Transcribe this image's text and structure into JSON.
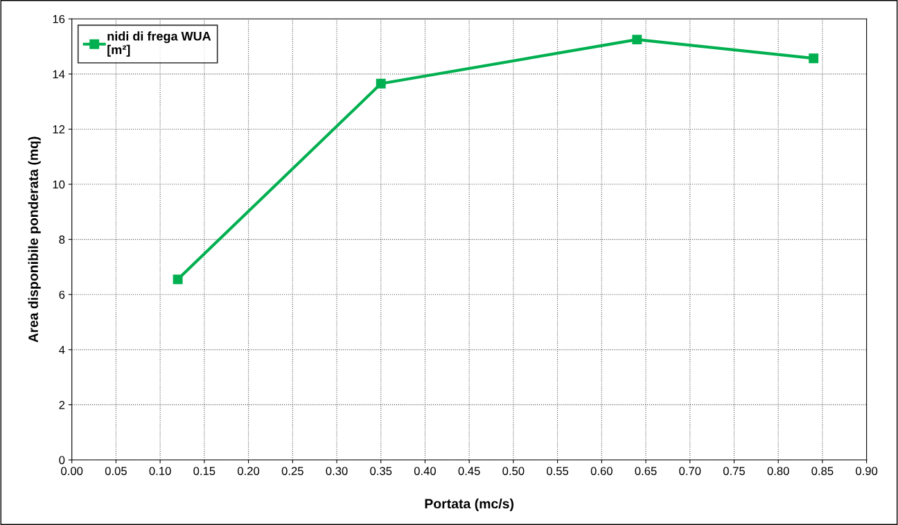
{
  "chart_data": {
    "type": "line",
    "xlabel": "Portata (mc/s)",
    "ylabel": "Area disponibile ponderata (mq)",
    "x": [
      0.12,
      0.35,
      0.64,
      0.84
    ],
    "series": [
      {
        "name": "nidi di frega WUA\n[m²]",
        "color": "#00b050",
        "values": [
          6.55,
          13.65,
          15.25,
          14.57
        ]
      }
    ],
    "xlim": [
      0,
      0.9
    ],
    "xticks": [
      {
        "value": 0,
        "label": "0.00"
      },
      {
        "value": 0.05,
        "label": "0.05"
      },
      {
        "value": 0.1,
        "label": "0.10"
      },
      {
        "value": 0.15,
        "label": "0.15"
      },
      {
        "value": 0.2,
        "label": "0.20"
      },
      {
        "value": 0.25,
        "label": "0.25"
      },
      {
        "value": 0.3,
        "label": "0.30"
      },
      {
        "value": 0.35,
        "label": "0.35"
      },
      {
        "value": 0.4,
        "label": "0.40"
      },
      {
        "value": 0.45,
        "label": "0.45"
      },
      {
        "value": 0.5,
        "label": "0.50"
      },
      {
        "value": 0.55,
        "label": "0.55"
      },
      {
        "value": 0.6,
        "label": "0.60"
      },
      {
        "value": 0.65,
        "label": "0.65"
      },
      {
        "value": 0.7,
        "label": "0.70"
      },
      {
        "value": 0.75,
        "label": "0.75"
      },
      {
        "value": 0.8,
        "label": "0.80"
      },
      {
        "value": 0.85,
        "label": "0.85"
      },
      {
        "value": 0.9,
        "label": "0.90"
      }
    ],
    "ylim": [
      0,
      16
    ],
    "yticks": [
      0,
      2,
      4,
      6,
      8,
      10,
      12,
      14,
      16
    ],
    "grid": true,
    "legend": "top left",
    "marker": "square",
    "line_style": "solid"
  }
}
